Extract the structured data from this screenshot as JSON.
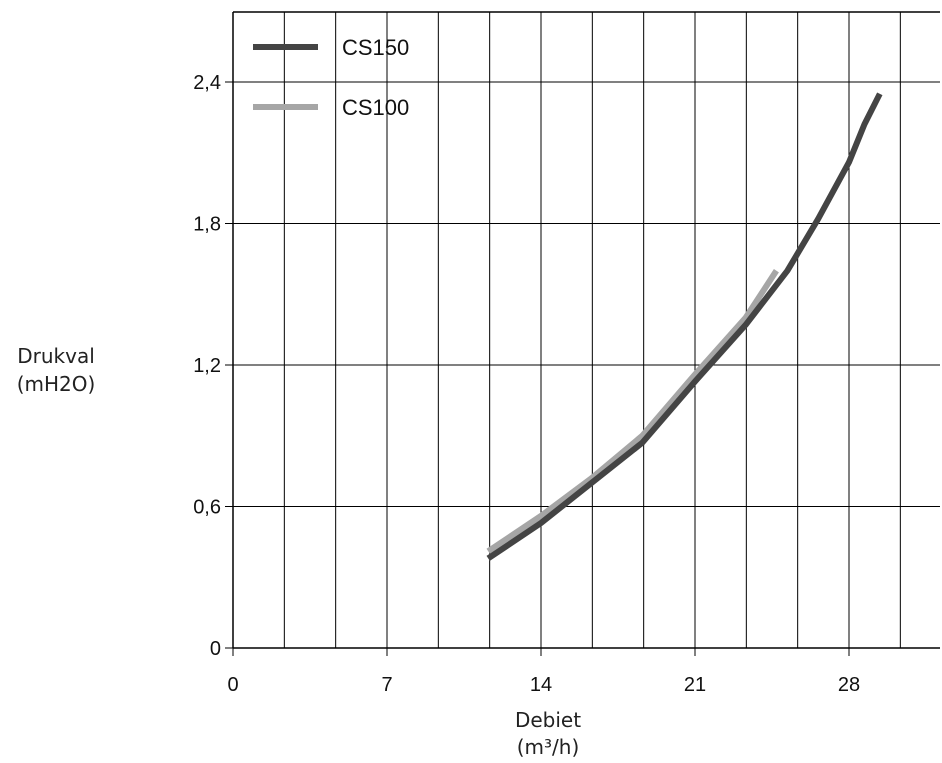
{
  "chart_data": {
    "type": "line",
    "title": "",
    "xlabel": [
      "Debiet",
      "(m³/h)"
    ],
    "ylabel": [
      "Drukval",
      "(mH2O)"
    ],
    "xlim": [
      0,
      31
    ],
    "ylim": [
      0,
      2.7
    ],
    "xticks": [
      0,
      7,
      14,
      21,
      28
    ],
    "xtick_labels": [
      "0",
      "7",
      "14",
      "21",
      "28"
    ],
    "yticks": [
      0,
      0.6,
      1.2,
      1.8,
      2.4
    ],
    "ytick_labels": [
      "0",
      "0,6",
      "1,2",
      "1,8",
      "2,4"
    ],
    "grid": true,
    "legend_position": "top-left",
    "series": [
      {
        "name": "CS150",
        "color": "#444444",
        "points": [
          [
            11.6,
            0.38
          ],
          [
            14,
            0.53
          ],
          [
            16.3,
            0.7
          ],
          [
            18.6,
            0.87
          ],
          [
            21,
            1.13
          ],
          [
            23.3,
            1.37
          ],
          [
            25.2,
            1.6
          ],
          [
            26.6,
            1.82
          ],
          [
            28,
            2.06
          ],
          [
            28.7,
            2.22
          ],
          [
            29.4,
            2.35
          ]
        ]
      },
      {
        "name": "CS100",
        "color": "#a6a6a6",
        "points": [
          [
            11.6,
            0.41
          ],
          [
            14,
            0.56
          ],
          [
            16.3,
            0.72
          ],
          [
            18.6,
            0.9
          ],
          [
            21,
            1.16
          ],
          [
            23.3,
            1.4
          ],
          [
            24.7,
            1.6
          ]
        ]
      }
    ]
  }
}
